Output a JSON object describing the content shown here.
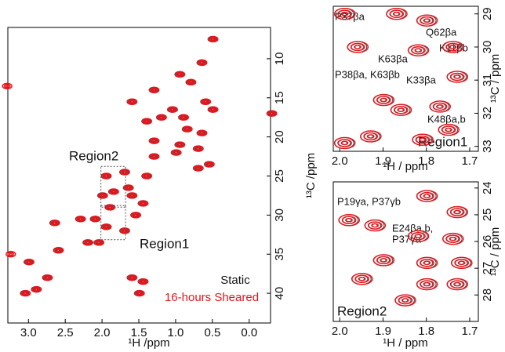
{
  "chart_data": [
    {
      "type": "contour",
      "x_label": "¹H /ppm",
      "y_label": "¹³C /ppm",
      "annotations": [
        "Region2",
        "Region1"
      ],
      "series": [
        {
          "name": "Static",
          "color": "#4d4d4d",
          "x": [
            0.5,
            0.65,
            0.95,
            0.8,
            1.3,
            1.6,
            0.6,
            0.5,
            1.05,
            1.2,
            0.9,
            -0.3,
            1.4,
            0.85,
            0.65,
            0.95,
            0.7,
            1.3,
            1.0,
            1.3,
            0.55,
            0.7,
            1.7,
            1.4,
            1.95,
            1.65,
            1.85,
            2.0,
            1.6,
            1.45,
            1.9,
            1.55,
            2.3,
            2.1,
            2.65,
            1.95,
            1.7,
            2.2,
            2.05,
            2.6,
            3.0,
            2.75,
            1.6,
            1.45,
            2.9,
            3.05,
            1.5
          ],
          "y": [
            7.5,
            10.5,
            12,
            13,
            14,
            15.5,
            15.5,
            16.5,
            16.5,
            17.5,
            17.5,
            17,
            18,
            19,
            19.5,
            21,
            21.5,
            20.5,
            22,
            22.5,
            23.5,
            24,
            24.5,
            25,
            25,
            26.5,
            27,
            27.5,
            27.5,
            28.5,
            29,
            30,
            30.5,
            30.5,
            31,
            31.5,
            32,
            33.5,
            33.5,
            34.5,
            36,
            38,
            38,
            38.5,
            39.5,
            40,
            40
          ]
        },
        {
          "name": "16-hours Sheared",
          "color": "#e8141b",
          "x": [
            0.5,
            0.65,
            0.95,
            0.8,
            1.3,
            1.6,
            0.6,
            0.5,
            1.05,
            1.2,
            0.9,
            -0.3,
            1.4,
            0.85,
            0.65,
            0.95,
            0.7,
            1.3,
            1.0,
            1.3,
            0.55,
            0.7,
            1.7,
            1.4,
            1.95,
            1.65,
            1.85,
            2.0,
            1.6,
            1.45,
            1.9,
            1.55,
            2.3,
            2.1,
            2.65,
            1.95,
            1.7,
            2.2,
            2.05,
            2.6,
            3.25,
            3.0,
            2.75,
            1.6,
            1.45,
            2.9,
            3.05,
            1.5,
            3.3
          ],
          "y": [
            7.5,
            10.5,
            12,
            13,
            14,
            15.5,
            15.5,
            16.5,
            16.5,
            17.5,
            17.5,
            17,
            18,
            19,
            19.5,
            21,
            21.5,
            20.5,
            22,
            22.5,
            23.5,
            24,
            24.5,
            25,
            25,
            26.5,
            27,
            27.5,
            27.5,
            28.5,
            29,
            30,
            30.5,
            30.5,
            31,
            31.5,
            32,
            33.5,
            33.5,
            34.5,
            35,
            36,
            38,
            38,
            38.5,
            39.5,
            40,
            40,
            13.5
          ]
        }
      ],
      "xlim": [
        3.28,
        -0.29
      ],
      "ylim": [
        6,
        43.8
      ],
      "xticks": [
        {
          "value": 3,
          "label": "3.0"
        },
        2.5,
        {
          "value": 2,
          "label": "2.0"
        },
        1.5,
        {
          "value": 1,
          "label": "1.0"
        },
        0.5,
        {
          "value": 0,
          "label": "0.0"
        }
      ],
      "yticks": [
        10,
        15,
        20,
        25,
        30,
        35,
        40
      ]
    },
    {
      "type": "contour",
      "title": "Region1",
      "x_label": "¹H / ppm",
      "y_label": "¹³C / ppm",
      "annotations": [
        "P37βa",
        "Q62βa",
        "K11βb",
        "K63βa",
        "P38βa, K63βb",
        "K33βa",
        "K48βa,b"
      ],
      "series": [
        {
          "color": "#4d4d4d",
          "x": [
            1.99,
            1.87,
            1.8,
            1.96,
            1.82,
            1.74,
            1.73,
            1.9,
            1.86,
            1.77,
            1.99,
            1.93,
            1.81,
            1.75
          ],
          "y": [
            29.0,
            29.0,
            29.2,
            30.0,
            30.1,
            30.0,
            30.9,
            31.6,
            31.9,
            31.8,
            32.9,
            32.7,
            32.8,
            32.5
          ]
        },
        {
          "color": "#e8141b",
          "x": [
            1.99,
            1.87,
            1.8,
            1.96,
            1.82,
            1.74,
            1.73,
            1.9,
            1.86,
            1.77,
            1.99,
            1.93,
            1.81,
            1.75
          ],
          "y": [
            29.0,
            29.0,
            29.2,
            30.0,
            30.1,
            30.0,
            30.9,
            31.6,
            31.9,
            31.8,
            32.9,
            32.7,
            32.8,
            32.5
          ]
        }
      ],
      "xlim": [
        2.015,
        1.68
      ],
      "ylim": [
        28.77,
        33.15
      ],
      "xticks": [
        {
          "value": 2,
          "label": "2.0"
        },
        1.9,
        1.8,
        1.7
      ],
      "yticks": [
        29,
        30,
        31,
        32,
        33
      ]
    },
    {
      "type": "contour",
      "title": "Region2",
      "x_label": "¹H / ppm",
      "y_label": "¹³C / ppm",
      "annotations": [
        "P19γa, P37γb",
        "E24βa,b,",
        "P37γa"
      ],
      "series": [
        {
          "color": "#4d4d4d",
          "x": [
            1.8,
            1.73,
            1.98,
            1.92,
            1.82,
            1.74,
            1.9,
            1.8,
            1.72,
            1.95,
            1.8,
            1.73,
            1.85
          ],
          "y": [
            24.3,
            24.9,
            25.2,
            25.4,
            25.8,
            25.9,
            26.7,
            26.8,
            26.8,
            27.4,
            27.6,
            27.6,
            28.2
          ]
        },
        {
          "color": "#e8141b",
          "x": [
            1.8,
            1.73,
            1.98,
            1.92,
            1.82,
            1.74,
            1.9,
            1.8,
            1.72,
            1.95,
            1.8,
            1.73,
            1.85
          ],
          "y": [
            24.3,
            24.9,
            25.2,
            25.4,
            25.8,
            25.9,
            26.7,
            26.8,
            26.8,
            27.4,
            27.6,
            27.6,
            28.2
          ]
        }
      ],
      "xlim": [
        2.015,
        1.68
      ],
      "ylim": [
        23.77,
        28.99
      ],
      "xticks": [
        {
          "value": 2,
          "label": "2.0"
        },
        1.9,
        1.8,
        1.7
      ],
      "yticks": [
        24,
        25,
        26,
        27,
        28
      ]
    }
  ]
}
